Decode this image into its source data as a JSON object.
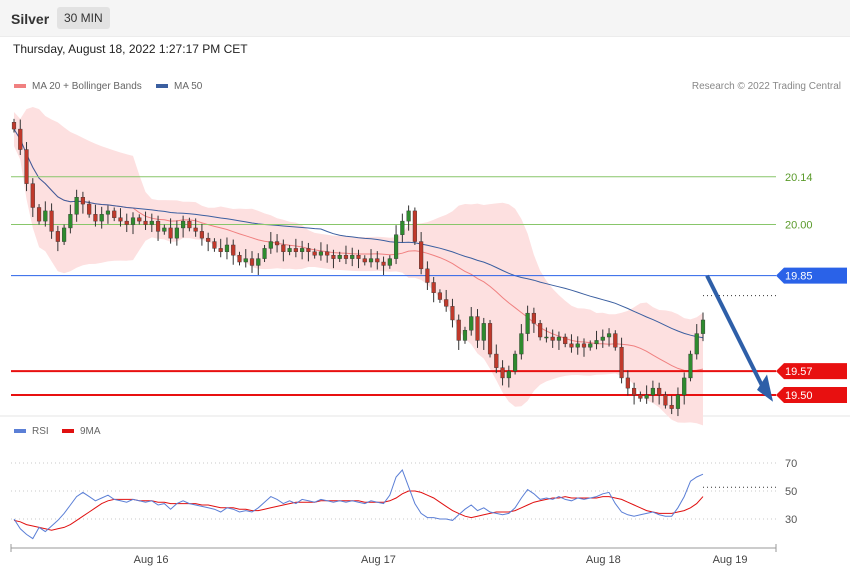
{
  "header": {
    "instrument": "Silver",
    "timeframe": "30 MIN",
    "datetime": "Thursday, August 18, 2022 1:27:17 PM CET"
  },
  "legend": {
    "ma20": "MA 20 + Bollinger Bands",
    "ma50": "MA 50",
    "rsi": "RSI",
    "rsi_ma": "9MA"
  },
  "credit": "Research © 2022 Trading Central",
  "colors": {
    "up": "#2e8b2e",
    "down": "#c0392b",
    "ma20": "#f08080",
    "ma50": "#3b5fa0",
    "rsi": "#5b7fd6",
    "rsi_ma": "#e01010",
    "band": "#fde0e0",
    "pivot": "#2a62e8",
    "support": "#e81010",
    "resistance": "#88c66a"
  },
  "chart_data": [
    {
      "type": "candlestick",
      "x_ticks": [
        "Aug 16",
        "Aug 17",
        "Aug 18",
        "Aug 19"
      ],
      "ylim": [
        19.45,
        20.38
      ],
      "levels": [
        {
          "label": "20.14",
          "value": 20.14,
          "kind": "resistance"
        },
        {
          "label": "20.00",
          "value": 20.0,
          "kind": "resistance"
        },
        {
          "label": "19.85",
          "value": 19.85,
          "kind": "pivot"
        },
        {
          "label": "19.57",
          "value": 19.57,
          "kind": "support"
        },
        {
          "label": "19.50",
          "value": 19.5,
          "kind": "support"
        }
      ],
      "closes": [
        20.28,
        20.22,
        20.12,
        20.05,
        20.01,
        20.04,
        19.98,
        19.95,
        19.99,
        20.03,
        20.08,
        20.06,
        20.03,
        20.01,
        20.03,
        20.04,
        20.02,
        20.01,
        20.0,
        20.02,
        20.01,
        20.0,
        20.01,
        19.98,
        19.99,
        19.96,
        19.99,
        20.01,
        19.99,
        19.98,
        19.96,
        19.95,
        19.93,
        19.92,
        19.94,
        19.91,
        19.89,
        19.9,
        19.88,
        19.9,
        19.93,
        19.95,
        19.94,
        19.92,
        19.93,
        19.92,
        19.93,
        19.92,
        19.91,
        19.92,
        19.91,
        19.9,
        19.91,
        19.9,
        19.91,
        19.9,
        19.89,
        19.9,
        19.89,
        19.88,
        19.9,
        19.97,
        20.01,
        20.04,
        19.95,
        19.87,
        19.83,
        19.8,
        19.78,
        19.76,
        19.72,
        19.66,
        19.69,
        19.73,
        19.66,
        19.71,
        19.62,
        19.58,
        19.55,
        19.57,
        19.62,
        19.68,
        19.74,
        19.71,
        19.67,
        19.67,
        19.66,
        19.67,
        19.65,
        19.64,
        19.65,
        19.64,
        19.65,
        19.66,
        19.67,
        19.68,
        19.64,
        19.55,
        19.52,
        19.5,
        19.49,
        19.5,
        19.52,
        19.5,
        19.47,
        19.46,
        19.5,
        19.55,
        19.62,
        19.68,
        19.72
      ]
    },
    {
      "type": "line",
      "title": "RSI",
      "y_ticks": [
        70,
        50,
        30
      ],
      "ylim": [
        15,
        85
      ],
      "series": [
        {
          "name": "RSI",
          "values": [
            30,
            23,
            19,
            16,
            24,
            21,
            25,
            29,
            34,
            40,
            46,
            49,
            46,
            43,
            45,
            47,
            44,
            43,
            42,
            44,
            43,
            42,
            43,
            40,
            41,
            37,
            41,
            43,
            41,
            40,
            39,
            38,
            37,
            35,
            38,
            37,
            35,
            36,
            35,
            38,
            42,
            46,
            44,
            41,
            43,
            41,
            44,
            43,
            42,
            44,
            43,
            42,
            43,
            42,
            43,
            42,
            41,
            43,
            42,
            41,
            47,
            60,
            65,
            53,
            41,
            34,
            31,
            31,
            30,
            30,
            29,
            33,
            37,
            40,
            36,
            38,
            35,
            34,
            33,
            34,
            38,
            45,
            51,
            48,
            44,
            45,
            44,
            46,
            44,
            43,
            45,
            44,
            45,
            46,
            48,
            49,
            41,
            35,
            33,
            32,
            33,
            34,
            35,
            33,
            32,
            32,
            38,
            46,
            57,
            60,
            62
          ]
        },
        {
          "name": "9MA",
          "values": [
            29,
            28,
            26,
            25,
            24,
            23,
            22,
            23,
            24,
            26,
            29,
            32,
            35,
            38,
            41,
            43,
            44,
            44,
            44,
            44,
            43,
            43,
            43,
            42,
            42,
            41,
            41,
            41,
            41,
            41,
            40,
            40,
            39,
            38,
            38,
            38,
            37,
            37,
            36,
            36,
            37,
            38,
            39,
            40,
            41,
            42,
            42,
            42,
            42,
            43,
            43,
            43,
            43,
            43,
            43,
            43,
            42,
            42,
            42,
            42,
            43,
            45,
            48,
            50,
            50,
            49,
            47,
            45,
            42,
            39,
            36,
            34,
            32,
            31,
            32,
            33,
            34,
            35,
            35,
            35,
            36,
            38,
            40,
            42,
            43,
            44,
            45,
            45,
            46,
            45,
            45,
            45,
            45,
            45,
            46,
            46,
            45,
            44,
            42,
            40,
            38,
            36,
            35,
            34,
            34,
            34,
            35,
            36,
            38,
            41,
            46
          ]
        }
      ]
    }
  ]
}
